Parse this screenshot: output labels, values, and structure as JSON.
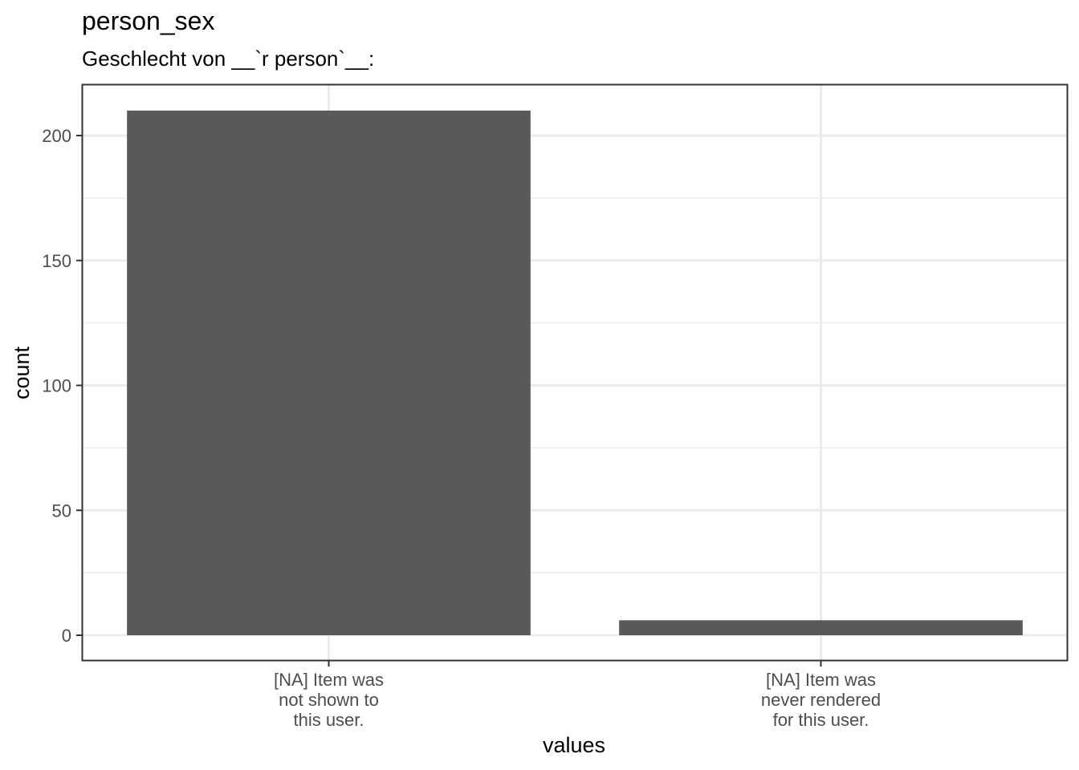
{
  "chart_data": {
    "type": "bar",
    "title": "person_sex",
    "subtitle": "Geschlecht von __`r person`__:",
    "xlabel": "values",
    "ylabel": "count",
    "categories": [
      [
        "[NA] Item was",
        "not shown to",
        "this user."
      ],
      [
        "[NA] Item was",
        "never rendered",
        "for this user."
      ]
    ],
    "values": [
      210,
      6
    ],
    "ylim": [
      -10,
      220
    ],
    "yticks": [
      0,
      50,
      100,
      150,
      200
    ],
    "grid": true,
    "bar_color": "#595959"
  }
}
